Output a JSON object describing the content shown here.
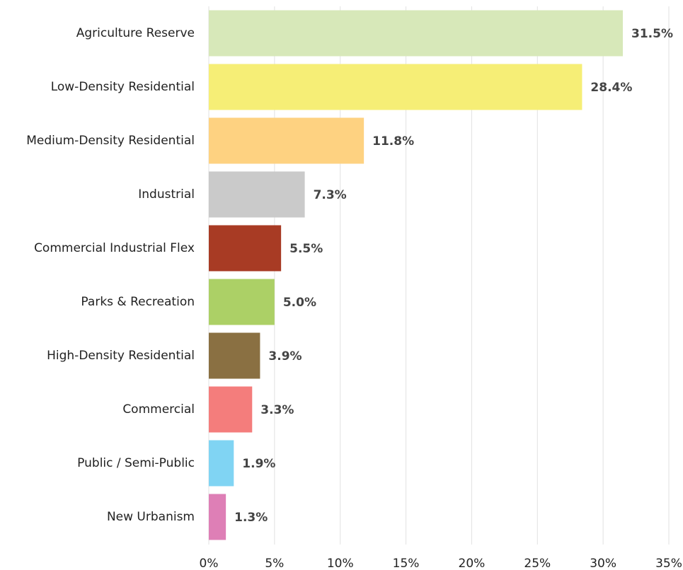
{
  "chart_data": {
    "type": "hbar",
    "categories": [
      "Agriculture Reserve",
      "Low-Density Residential",
      "Medium-Density Residential",
      "Industrial",
      "Commercial Industrial Flex",
      "Parks & Recreation",
      "High-Density Residential",
      "Commercial",
      "Public / Semi-Public",
      "New Urbanism"
    ],
    "values": [
      31.5,
      28.4,
      11.8,
      7.3,
      5.5,
      5.0,
      3.9,
      3.3,
      1.9,
      1.3
    ],
    "value_labels": [
      "31.5%",
      "28.4%",
      "11.8%",
      "7.3%",
      "5.5%",
      "5.0%",
      "3.9%",
      "3.3%",
      "1.9%",
      "1.3%"
    ],
    "colors": [
      "#d7e8b9",
      "#f6ee76",
      "#fed281",
      "#cacaca",
      "#a83b24",
      "#acd066",
      "#8a7042",
      "#f47d7c",
      "#80d4f3",
      "#de7fb6"
    ],
    "xlim": [
      0,
      35
    ],
    "xticks": [
      {
        "value": 0,
        "label": "0%"
      },
      {
        "value": 5,
        "label": "5%"
      },
      {
        "value": 10,
        "label": "10%"
      },
      {
        "value": 15,
        "label": "15%"
      },
      {
        "value": 20,
        "label": "20%"
      },
      {
        "value": 25,
        "label": "25%"
      },
      {
        "value": 30,
        "label": "30%"
      },
      {
        "value": 35,
        "label": "35%"
      }
    ],
    "grid": true
  }
}
